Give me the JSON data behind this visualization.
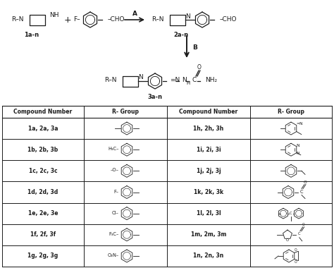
{
  "bg_color": "#ffffff",
  "table_headers": [
    "Compound Number",
    "R- Group",
    "Compound Number",
    "R- Group"
  ],
  "compound_numbers_left": [
    "1a, 2a, 3a",
    "1b, 2b, 3b",
    "1c, 2c, 3c",
    "1d, 2d, 3d",
    "1e, 2e, 3e",
    "1f, 2f, 3f",
    "1g, 2g, 3g"
  ],
  "compound_numbers_right": [
    "1h, 2h, 3h",
    "1i, 2i, 3i",
    "1j, 2j, 3j",
    "1k, 2k, 3k",
    "1l, 2l, 3l",
    "1m, 2m, 3m",
    "1n, 2n, 3n"
  ],
  "r_left_labels": [
    "",
    "H₃C",
    "–O",
    "F",
    "Cl",
    "F₃C",
    "O₂N"
  ],
  "scheme_label1": "1a-n",
  "scheme_label2": "2a-n",
  "scheme_label3": "3a-n",
  "figsize": [
    4.74,
    3.8
  ],
  "dpi": 100
}
